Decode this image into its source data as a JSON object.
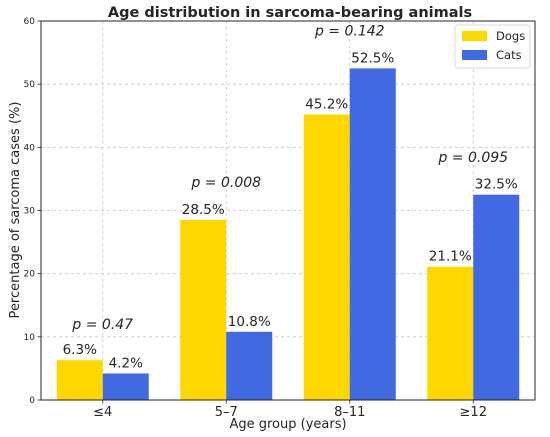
{
  "chart_data": {
    "type": "bar",
    "title": "Age distribution in sarcoma-bearing animals",
    "xlabel": "Age group (years)",
    "ylabel": "Percentage of sarcoma cases (%)",
    "ylim": [
      0,
      60
    ],
    "yticks": [
      0,
      10,
      20,
      30,
      40,
      50,
      60
    ],
    "categories": [
      "≤4",
      "5–7",
      "8–11",
      "≥12"
    ],
    "series": [
      {
        "name": "Dogs",
        "color": "#FFD700",
        "values": [
          6.3,
          28.5,
          45.2,
          21.1
        ],
        "labels": [
          "6.3%",
          "28.5%",
          "45.2%",
          "21.1%"
        ]
      },
      {
        "name": "Cats",
        "color": "#4169E1",
        "values": [
          4.2,
          10.8,
          52.5,
          32.5
        ],
        "labels": [
          "4.2%",
          "10.8%",
          "52.5%",
          "32.5%"
        ]
      }
    ],
    "annotations": [
      {
        "text": "p = 0.47",
        "category": "≤4",
        "y": 12
      },
      {
        "text": "p = 0.008",
        "category": "5–7",
        "y": 34.5
      },
      {
        "text": "p = 0.142",
        "category": "8–11",
        "y": 58.5
      },
      {
        "text": "p = 0.095",
        "category": "≥12",
        "y": 38.5
      }
    ],
    "grid": true,
    "legend": "top-right"
  }
}
